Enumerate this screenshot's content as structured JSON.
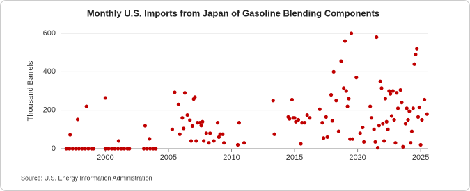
{
  "chart_data": {
    "type": "scatter",
    "title": "Monthly U.S. Imports from Japan of Gasoline Blending Components",
    "y_label": "Thousand Barrels",
    "source": "Source: U.S. Energy Information Administration",
    "xlim": [
      1996.5,
      2025.6
    ],
    "xticks": [
      2000,
      2005,
      2010,
      2015,
      2020,
      2025
    ],
    "ylim": [
      0,
      600
    ],
    "yticks": [
      0,
      200,
      400,
      600
    ],
    "grid": true,
    "series": [
      {
        "color": "#c00000",
        "x": [
          1996.9,
          1997.15,
          1997.2,
          1997.4,
          1997.65,
          1997.8,
          1997.9,
          1998.15,
          1998.4,
          1998.5,
          1998.65,
          1998.9,
          1999.05,
          2000.0,
          2000.0,
          2000.25,
          2000.5,
          2000.75,
          2001.0,
          2001.05,
          2001.25,
          2001.5,
          2001.75,
          2001.9,
          2003.05,
          2003.15,
          2003.3,
          2003.5,
          2003.55,
          2003.8,
          2004.0,
          2005.3,
          2005.5,
          2005.8,
          2005.9,
          2006.1,
          2006.2,
          2006.3,
          2006.5,
          2006.7,
          2006.8,
          2006.9,
          2007.0,
          2007.1,
          2007.2,
          2007.3,
          2007.5,
          2007.6,
          2007.7,
          2007.8,
          2008.0,
          2008.2,
          2008.3,
          2008.6,
          2008.9,
          2009.0,
          2009.1,
          2009.3,
          2009.4,
          2010.5,
          2010.6,
          2011.0,
          2013.3,
          2013.4,
          2014.5,
          2014.6,
          2014.8,
          2014.9,
          2015.0,
          2015.1,
          2015.3,
          2015.5,
          2015.6,
          2015.8,
          2016.0,
          2016.2,
          2017.0,
          2017.2,
          2017.3,
          2017.5,
          2017.6,
          2017.9,
          2018.0,
          2018.1,
          2018.3,
          2018.5,
          2018.7,
          2018.9,
          2019.0,
          2019.1,
          2019.2,
          2019.3,
          2019.4,
          2019.5,
          2019.6,
          2019.9,
          2020.2,
          2020.4,
          2020.5,
          2021.0,
          2021.1,
          2021.3,
          2021.4,
          2021.5,
          2021.6,
          2021.7,
          2021.8,
          2021.9,
          2022.0,
          2022.1,
          2022.2,
          2022.3,
          2022.4,
          2022.5,
          2022.6,
          2022.7,
          2022.8,
          2022.9,
          2023.0,
          2023.1,
          2023.2,
          2023.4,
          2023.5,
          2023.6,
          2023.8,
          2023.9,
          2024.0,
          2024.1,
          2024.2,
          2024.3,
          2024.4,
          2024.5,
          2024.6,
          2024.7,
          2024.8,
          2024.9,
          2025.0,
          2025.1,
          2025.3,
          2025.5
        ],
        "values": [
          0,
          0,
          72,
          0,
          0,
          152,
          0,
          0,
          0,
          220,
          0,
          0,
          0,
          264,
          0,
          0,
          0,
          0,
          0,
          40,
          0,
          0,
          0,
          0,
          0,
          119,
          0,
          51,
          0,
          0,
          0,
          100,
          293,
          230,
          75,
          160,
          105,
          290,
          175,
          148,
          40,
          118,
          258,
          268,
          40,
          135,
          135,
          120,
          140,
          40,
          80,
          30,
          80,
          40,
          135,
          60,
          75,
          75,
          30,
          20,
          135,
          30,
          250,
          75,
          165,
          155,
          255,
          160,
          160,
          140,
          150,
          25,
          135,
          135,
          175,
          160,
          205,
          135,
          55,
          165,
          60,
          280,
          145,
          400,
          250,
          90,
          455,
          315,
          560,
          300,
          220,
          260,
          50,
          600,
          50,
          370,
          80,
          110,
          35,
          220,
          160,
          100,
          35,
          580,
          5,
          120,
          350,
          315,
          130,
          40,
          260,
          140,
          100,
          300,
          285,
          170,
          300,
          150,
          30,
          290,
          210,
          305,
          240,
          10,
          130,
          210,
          150,
          195,
          30,
          90,
          210,
          440,
          490,
          520,
          165,
          215,
          20,
          150,
          255,
          180
        ]
      }
    ]
  }
}
